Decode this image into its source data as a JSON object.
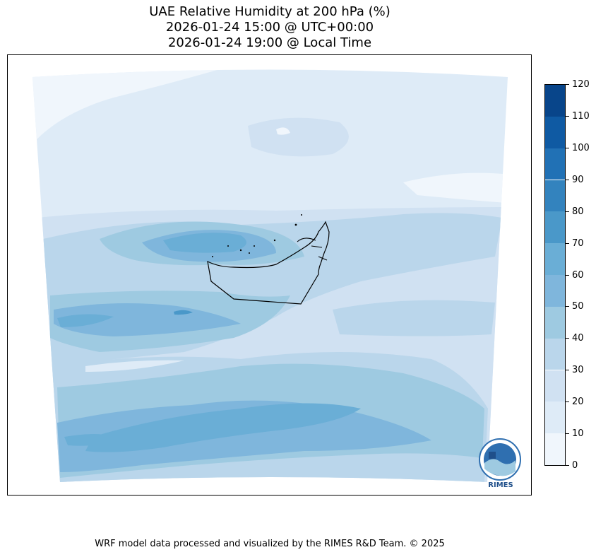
{
  "title": {
    "line1": "UAE Relative Humidity at 200 hPa (%)",
    "line2": "2026-01-24 15:00 @ UTC+00:00",
    "line3": "2026-01-24 19:00 @ Local Time"
  },
  "colorbar": {
    "ticks": [
      "0",
      "10",
      "20",
      "30",
      "40",
      "50",
      "60",
      "70",
      "80",
      "90",
      "100",
      "110",
      "120"
    ],
    "colors": [
      "#f0f6fc",
      "#deebf7",
      "#d0e1f2",
      "#bad6eb",
      "#9ecae1",
      "#7fb6dc",
      "#6aaed6",
      "#4a98c9",
      "#3383be",
      "#2171b5",
      "#0f5aa3",
      "#08458a"
    ]
  },
  "logo": {
    "text": "RIMES"
  },
  "footer": "WRF model data processed and visualized by the RIMES R&D Team. © 2025"
}
